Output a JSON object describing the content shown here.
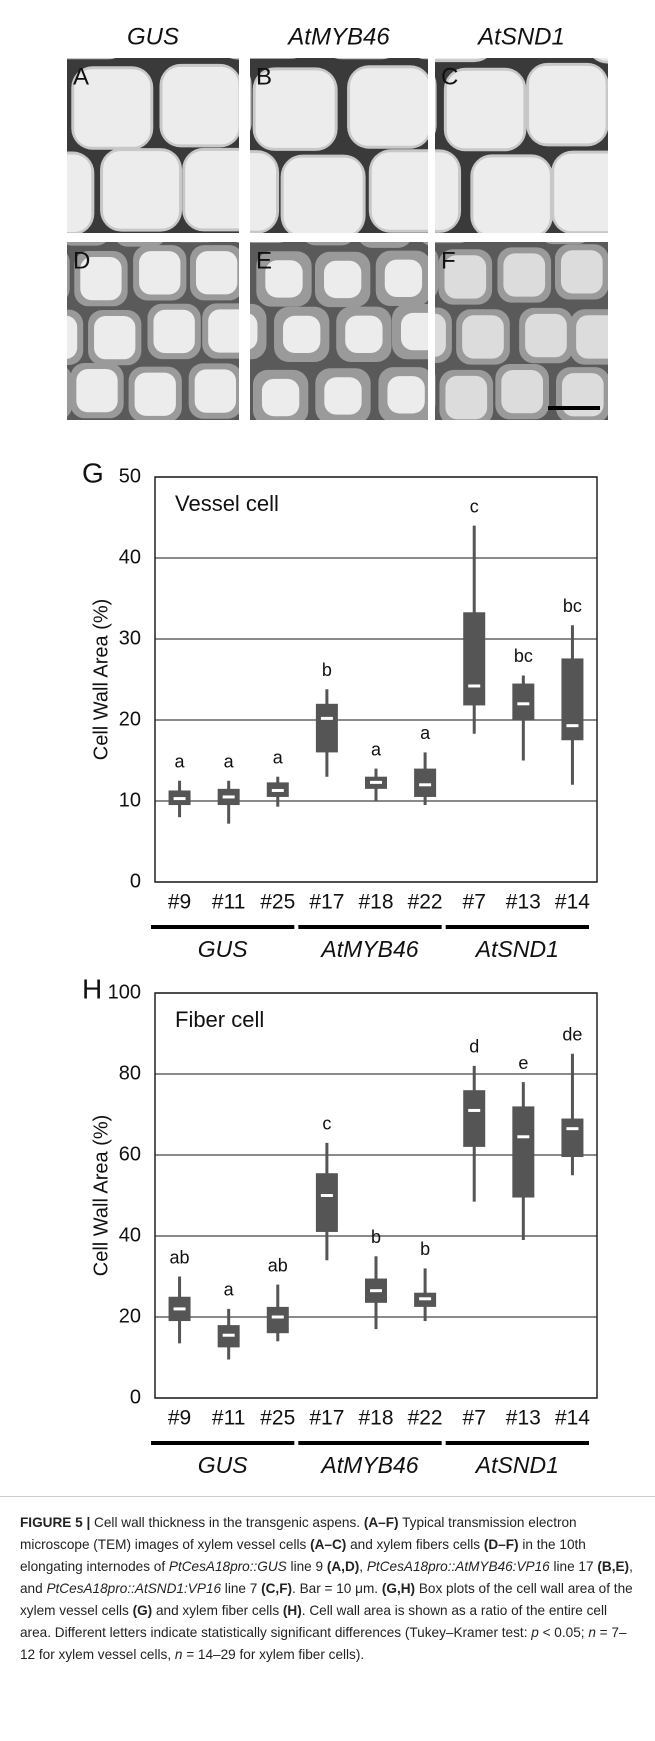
{
  "panels": {
    "columns": [
      "GUS",
      "AtMYB46",
      "AtSND1"
    ],
    "labels": [
      "A",
      "B",
      "C",
      "D",
      "E",
      "F"
    ]
  },
  "chart_data": [
    {
      "type": "box",
      "panel": "G",
      "title": "Vessel cell",
      "ylabel": "Cell Wall Area (%)",
      "categories": [
        "#9",
        "#11",
        "#25",
        "#17",
        "#18",
        "#22",
        "#7",
        "#13",
        "#14"
      ],
      "groups": [
        "GUS",
        "AtMYB46",
        "AtSND1"
      ],
      "boxes": [
        {
          "min": 8,
          "q1": 9.5,
          "median": 10.3,
          "q3": 11.3,
          "max": 12.5
        },
        {
          "min": 7.2,
          "q1": 9.5,
          "median": 10.5,
          "q3": 11.5,
          "max": 12.5
        },
        {
          "min": 9.3,
          "q1": 10.5,
          "median": 11.3,
          "q3": 12.3,
          "max": 13
        },
        {
          "min": 13,
          "q1": 16,
          "median": 20.2,
          "q3": 22,
          "max": 23.8
        },
        {
          "min": 10,
          "q1": 11.5,
          "median": 12.3,
          "q3": 13,
          "max": 14
        },
        {
          "min": 9.5,
          "q1": 10.5,
          "median": 12,
          "q3": 14,
          "max": 16
        },
        {
          "min": 18.3,
          "q1": 21.8,
          "median": 24.2,
          "q3": 33.3,
          "max": 44
        },
        {
          "min": 15,
          "q1": 20,
          "median": 22,
          "q3": 24.5,
          "max": 25.5
        },
        {
          "min": 12,
          "q1": 17.5,
          "median": 19.3,
          "q3": 27.6,
          "max": 31.7
        }
      ],
      "letters": [
        "a",
        "a",
        "a",
        "b",
        "a",
        "a",
        "c",
        "bc",
        "bc"
      ],
      "color": "#555555",
      "ylim": [
        0,
        50
      ],
      "yticks": [
        0,
        10,
        20,
        30,
        40,
        50
      ],
      "grid": true
    },
    {
      "type": "box",
      "panel": "H",
      "title": "Fiber cell",
      "ylabel": "Cell Wall Area (%)",
      "categories": [
        "#9",
        "#11",
        "#25",
        "#17",
        "#18",
        "#22",
        "#7",
        "#13",
        "#14"
      ],
      "groups": [
        "GUS",
        "AtMYB46",
        "AtSND1"
      ],
      "boxes": [
        {
          "min": 13.5,
          "q1": 19,
          "median": 22,
          "q3": 25,
          "max": 30
        },
        {
          "min": 9.5,
          "q1": 12.5,
          "median": 15.5,
          "q3": 18,
          "max": 22
        },
        {
          "min": 14,
          "q1": 16,
          "median": 20,
          "q3": 22.5,
          "max": 28
        },
        {
          "min": 34,
          "q1": 41,
          "median": 50,
          "q3": 55.5,
          "max": 63
        },
        {
          "min": 17,
          "q1": 23.5,
          "median": 26.5,
          "q3": 29.5,
          "max": 35
        },
        {
          "min": 19,
          "q1": 22.5,
          "median": 24.5,
          "q3": 26,
          "max": 32
        },
        {
          "min": 48.5,
          "q1": 62,
          "median": 71,
          "q3": 76,
          "max": 82
        },
        {
          "min": 39,
          "q1": 49.5,
          "median": 64.5,
          "q3": 72,
          "max": 78
        },
        {
          "min": 55,
          "q1": 59.5,
          "median": 66.5,
          "q3": 69,
          "max": 85
        }
      ],
      "letters": [
        "ab",
        "a",
        "ab",
        "c",
        "b",
        "b",
        "d",
        "e",
        "de"
      ],
      "color": "#555555",
      "ylim": [
        0,
        100
      ],
      "yticks": [
        0,
        20,
        40,
        60,
        80,
        100
      ],
      "grid": true
    }
  ],
  "caption": {
    "runs": [
      {
        "text": "FIGURE 5 |",
        "bold": true
      },
      {
        "text": " Cell wall thickness in the transgenic aspens. "
      },
      {
        "text": "(A–F)",
        "bold": true
      },
      {
        "text": " Typical transmission electron microscope (TEM) images of xylem vessel cells "
      },
      {
        "text": "(A–C)",
        "bold": true
      },
      {
        "text": " and xylem fibers cells "
      },
      {
        "text": "(D–F)",
        "bold": true
      },
      {
        "text": " in the 10th elongating internodes of "
      },
      {
        "text": "PtCesA18pro::GUS",
        "italic": true
      },
      {
        "text": " line 9 "
      },
      {
        "text": "(A,D)",
        "bold": true
      },
      {
        "text": ", "
      },
      {
        "text": "PtCesA18pro::AtMYB46:VP16",
        "italic": true
      },
      {
        "text": " line 17 "
      },
      {
        "text": "(B,E)",
        "bold": true
      },
      {
        "text": ", and "
      },
      {
        "text": "PtCesA18pro::AtSND1:VP16",
        "italic": true
      },
      {
        "text": " line 7 "
      },
      {
        "text": "(C,F)",
        "bold": true
      },
      {
        "text": ". Bar = 10 μm. "
      },
      {
        "text": "(G,H)",
        "bold": true
      },
      {
        "text": " Box plots of the cell wall area of the xylem vessel cells "
      },
      {
        "text": "(G)",
        "bold": true
      },
      {
        "text": " and xylem fiber cells "
      },
      {
        "text": "(H)",
        "bold": true
      },
      {
        "text": ". Cell wall area is shown as a ratio of the entire cell area. Different letters indicate statistically significant differences (Tukey–Kramer test: "
      },
      {
        "text": "p",
        "italic": true
      },
      {
        "text": " < 0.05; "
      },
      {
        "text": "n",
        "italic": true
      },
      {
        "text": " = 7–12 for xylem vessel cells, "
      },
      {
        "text": "n",
        "italic": true
      },
      {
        "text": " = 14–29 for xylem fiber cells)."
      }
    ]
  }
}
